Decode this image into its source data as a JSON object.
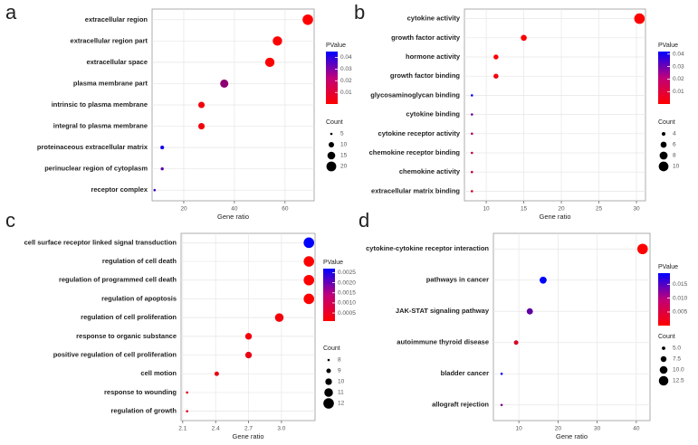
{
  "chart_data": [
    {
      "type": "scatter",
      "panel": "a",
      "xlabel": "Gene ratio",
      "categories": [
        "extracellular region",
        "extracellular region part",
        "extracellular space",
        "plasma membrane part",
        "intrinsic to plasma membrane",
        "integral to plasma membrane",
        "proteinaceous extracellular matrix",
        "perinuclear region of cytoplasm",
        "receptor complex"
      ],
      "x": [
        69,
        57,
        54,
        36,
        27,
        27,
        11.5,
        11.5,
        8.5
      ],
      "sizes": [
        22,
        19,
        19,
        16,
        12,
        12,
        7,
        6,
        5
      ],
      "pvalues": [
        0.0001,
        0.0003,
        0.0005,
        0.02,
        0.002,
        0.002,
        0.042,
        0.03,
        0.035
      ],
      "xlim": [
        7.5,
        71.5
      ],
      "xticks": [
        20,
        40,
        60
      ],
      "grid": true,
      "color_legend": {
        "title": "PValue",
        "lim": [
          0.0001,
          0.045
        ],
        "ticks": [
          0.01,
          0.02,
          0.03,
          0.04
        ],
        "colors": [
          "#ff0000",
          "#0000ff"
        ]
      },
      "size_legend": {
        "title": "Count",
        "ticks": [
          5,
          10,
          15,
          20
        ]
      }
    },
    {
      "type": "scatter",
      "panel": "b",
      "xlabel": "Gene ratio",
      "categories": [
        "cytokine activity",
        "growth factor activity",
        "hormone activity",
        "growth factor binding",
        "glycosaminoglycan binding",
        "cytokine binding",
        "cytokine receptor activity",
        "chemokine receptor binding",
        "chemokine activity",
        "extracellular matrix binding"
      ],
      "x": [
        30.4,
        15,
        11.3,
        11.3,
        8.1,
        8.1,
        8.1,
        8.1,
        8.1,
        8.1
      ],
      "sizes": [
        11,
        6,
        5,
        5,
        3,
        3,
        3,
        3,
        3,
        3
      ],
      "pvalues": [
        0.0001,
        0.0005,
        0.001,
        0.002,
        0.04,
        0.025,
        0.015,
        0.01,
        0.01,
        0.008
      ],
      "xlim": [
        7.1,
        31.2
      ],
      "xticks": [
        10,
        15,
        20,
        25,
        30
      ],
      "grid": true,
      "color_legend": {
        "title": "PValue",
        "lim": [
          0.0001,
          0.042
        ],
        "ticks": [
          0.01,
          0.02,
          0.03,
          0.04
        ],
        "colors": [
          "#ff0000",
          "#0000ff"
        ]
      },
      "size_legend": {
        "title": "Count",
        "ticks": [
          4,
          6,
          8,
          10
        ]
      }
    },
    {
      "type": "scatter",
      "panel": "c",
      "xlabel": "Gene ratio",
      "categories": [
        "cell surface receptor linked signal transduction",
        "regulation of cell death",
        "regulation of programmed cell death",
        "regulation of apoptosis",
        "regulation of cell proliferation",
        "response to organic substance",
        "positive regulation of cell proliferation",
        "cell motion",
        "response to wounding",
        "regulation of growth"
      ],
      "x": [
        3.25,
        3.25,
        3.25,
        3.25,
        2.98,
        2.7,
        2.7,
        2.41,
        2.14,
        2.14
      ],
      "sizes": [
        12,
        12,
        12,
        12,
        11,
        10,
        10,
        9,
        8,
        8
      ],
      "pvalues": [
        0.0027,
        0.0001,
        0.0001,
        0.0001,
        0.0002,
        0.0002,
        0.0003,
        0.0003,
        0.0004,
        0.0004
      ],
      "xlim": [
        2.085,
        3.306
      ],
      "xticks": [
        2.1,
        2.4,
        2.7,
        {
          "value": 3,
          "label": "3.0"
        }
      ],
      "grid": true,
      "color_legend": {
        "title": "PValue",
        "lim": [
          0.0001,
          0.0027
        ],
        "ticks": [
          0.0005,
          {
            "value": 0.001,
            "label": "0.0010"
          },
          0.0015,
          {
            "value": 0.002,
            "label": "0.0020"
          },
          0.0025
        ],
        "colors": [
          "#ff0000",
          "#0000ff"
        ]
      },
      "size_legend": {
        "title": "Count",
        "ticks": [
          8,
          9,
          10,
          11,
          12
        ]
      }
    },
    {
      "type": "scatter",
      "panel": "d",
      "xlabel": "Gene ratio",
      "categories": [
        "cytokine-cytokine receptor interaction",
        "pathways in cancer",
        "JAK-STAT signaling pathway",
        "autoimmune thyroid disease",
        "bladder cancer",
        "allograft rejection"
      ],
      "x": [
        41.6,
        16.2,
        12.8,
        9.3,
        5.6,
        5.6
      ],
      "sizes": [
        14,
        9,
        8,
        6,
        4,
        4
      ],
      "pvalues": [
        0.0001,
        0.019,
        0.012,
        0.003,
        0.018,
        0.01
      ],
      "xlim": [
        3.5,
        43.5
      ],
      "xticks": [
        10,
        20,
        30,
        40
      ],
      "grid": true,
      "color_legend": {
        "title": "PValue",
        "lim": [
          0.0001,
          0.019
        ],
        "ticks": [
          0.005,
          {
            "value": 0.01,
            "label": "0.010"
          },
          0.015
        ],
        "colors": [
          "#ff0000",
          "#0000ff"
        ]
      },
      "size_legend": {
        "title": "Count",
        "ticks": [
          {
            "value": 5,
            "label": "5.0"
          },
          7.5,
          {
            "value": 10,
            "label": "10.0"
          },
          12.5
        ]
      }
    }
  ]
}
